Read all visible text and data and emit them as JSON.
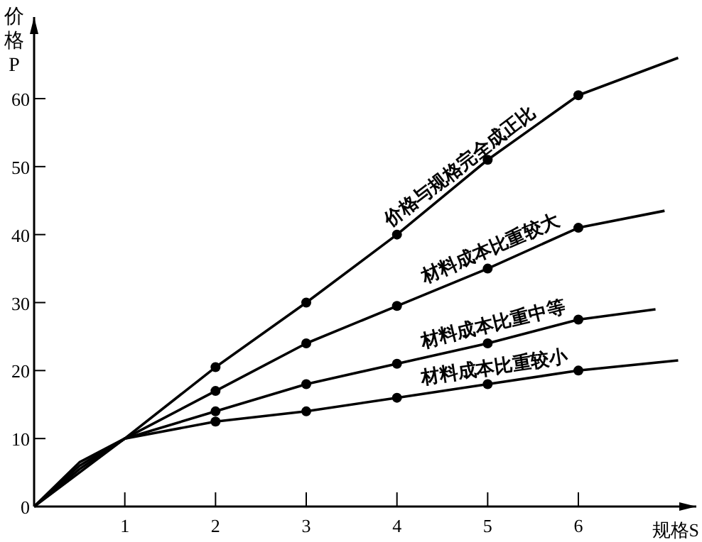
{
  "chart_data": {
    "type": "line",
    "xlabel": "规格S",
    "ylabel": "价格P",
    "xlim": [
      0,
      7.3
    ],
    "ylim": [
      0,
      72
    ],
    "xticks": [
      1,
      2,
      3,
      4,
      5,
      6
    ],
    "yticks": [
      0,
      10,
      20,
      30,
      40,
      50,
      60
    ],
    "grid": false,
    "series": [
      {
        "name": "价格与规格完全成正比",
        "type": "line",
        "color": "#000000",
        "x": [
          0,
          0.5,
          1,
          2,
          3,
          4,
          5,
          6,
          7.1
        ],
        "values": [
          0,
          5,
          10,
          20.5,
          30,
          40,
          51,
          60.5,
          66
        ]
      },
      {
        "name": "材料成本比重较大",
        "type": "line",
        "color": "#000000",
        "x": [
          0,
          0.5,
          1,
          2,
          3,
          4,
          5,
          6,
          6.95
        ],
        "values": [
          0,
          5.5,
          10,
          17,
          24,
          29.5,
          35,
          41,
          43.5
        ]
      },
      {
        "name": "材料成本比重中等",
        "type": "line",
        "color": "#000000",
        "x": [
          0,
          0.5,
          1,
          2,
          3,
          4,
          5,
          6,
          6.85
        ],
        "values": [
          0,
          6,
          10,
          14,
          18,
          21,
          24,
          27.5,
          29
        ]
      },
      {
        "name": "材料成本比重较小",
        "type": "line",
        "color": "#000000",
        "x": [
          0,
          0.5,
          1,
          2,
          3,
          4,
          5,
          6,
          7.1
        ],
        "values": [
          0,
          6.5,
          10,
          12.5,
          14,
          16,
          18,
          20,
          21.5
        ]
      },
      {
        "type": "scatter",
        "color": "#000000",
        "marker": "circle",
        "x": [
          2,
          3,
          4,
          5,
          6
        ],
        "values": [
          20.5,
          30,
          40,
          51,
          60.5
        ]
      },
      {
        "type": "scatter",
        "color": "#000000",
        "marker": "circle",
        "x": [
          2,
          3,
          4,
          5,
          6
        ],
        "values": [
          17,
          24,
          29.5,
          35,
          41
        ]
      },
      {
        "type": "scatter",
        "color": "#000000",
        "marker": "circle",
        "x": [
          2,
          3,
          4,
          5,
          6
        ],
        "values": [
          14,
          18,
          21,
          24,
          27.5
        ]
      },
      {
        "type": "scatter",
        "color": "#000000",
        "marker": "circle",
        "x": [
          2,
          3,
          4,
          5,
          6
        ],
        "values": [
          12.5,
          14,
          16,
          18,
          20
        ]
      }
    ]
  }
}
